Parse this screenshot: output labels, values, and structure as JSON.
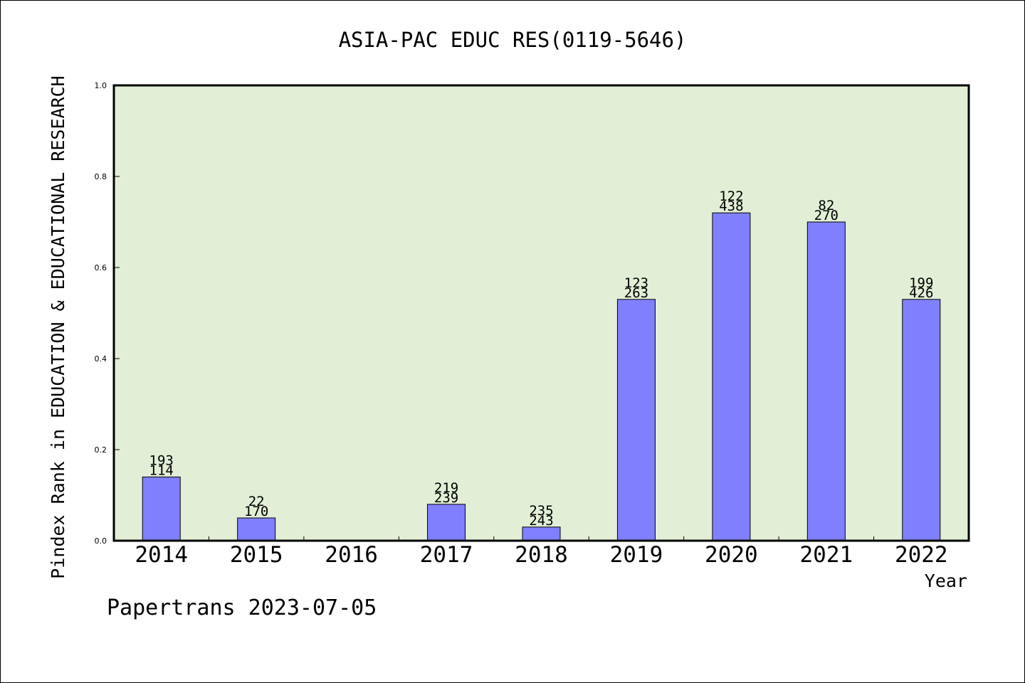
{
  "chart_data": {
    "type": "bar",
    "title": "ASIA-PAC EDUC RES(0119-5646)",
    "xlabel": "Year",
    "ylabel": "Pindex Rank in EDUCATION & EDUCATIONAL RESEARCH",
    "ylim": [
      0,
      1.0
    ],
    "yticks": [
      "0.0",
      "0.2",
      "0.4",
      "0.6",
      "0.8",
      "1.0"
    ],
    "grid": false,
    "categories": [
      "2014",
      "2015",
      "2016",
      "2017",
      "2018",
      "2019",
      "2020",
      "2021",
      "2022"
    ],
    "values": [
      0.14,
      0.05,
      null,
      0.08,
      0.03,
      0.53,
      0.72,
      0.7,
      0.53
    ],
    "labels_top": [
      "193",
      "22",
      "",
      "219",
      "235",
      "123",
      "122",
      "82",
      "199"
    ],
    "labels_bottom": [
      "114",
      "170",
      "",
      "239",
      "243",
      "263",
      "438",
      "270",
      "426"
    ],
    "colors": {
      "bar_fill": "#8080ff",
      "plot_background": "#e2efd6",
      "axis": "#000000"
    }
  },
  "footer": {
    "credit": "Papertrans 2023-07-05"
  }
}
